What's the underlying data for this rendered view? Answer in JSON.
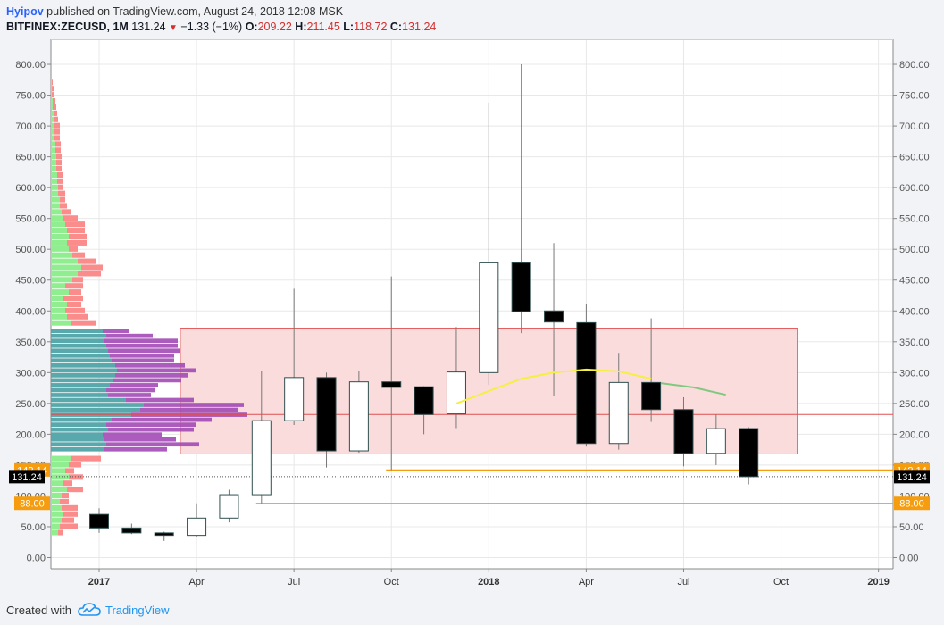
{
  "header": {
    "author": "Hyipov",
    "published_text": "published on TradingView.com, August 24, 2018 12:08 MSK",
    "symbol": "BITFINEX:ZECUSD, 1M",
    "last": "131.24",
    "change": "−1.33 (−1%)",
    "o_label": "O:",
    "o_value": "209.22",
    "h_label": "H:",
    "h_value": "211.45",
    "l_label": "L:",
    "l_value": "118.72",
    "c_label": "C:",
    "c_value": "131.24"
  },
  "footer": {
    "created_with": "Created with",
    "brand": "TradingView"
  },
  "colors": {
    "up_fill": "#ffffff",
    "down_fill": "#000000",
    "candle_stroke": "#2f4f4f",
    "wick": "#777777",
    "zone_fill": "#fbdcdc",
    "zone_stroke": "#e05050",
    "level_line": "#f59d0e",
    "ma_yellow": "#f5ef40",
    "ma_green": "#7fc97f",
    "vp_green": "#90ee90",
    "vp_red": "#fa8c8c",
    "vp_teal": "#4fa3a8",
    "vp_purple": "#a24ab5"
  },
  "chart_data": {
    "type": "candlestick",
    "ylim": [
      -20,
      820
    ],
    "y_ticks": [
      "0.00",
      "50.00",
      "100.00",
      "150.00",
      "200.00",
      "250.00",
      "300.00",
      "350.00",
      "400.00",
      "450.00",
      "500.00",
      "550.00",
      "600.00",
      "650.00",
      "700.00",
      "750.00",
      "800.00"
    ],
    "x_tick_labels": [
      {
        "label": "2017",
        "bold": true,
        "month": 0
      },
      {
        "label": "Apr",
        "bold": false,
        "month": 3
      },
      {
        "label": "Jul",
        "bold": false,
        "month": 6
      },
      {
        "label": "Oct",
        "bold": false,
        "month": 9
      },
      {
        "label": "2018",
        "bold": true,
        "month": 12
      },
      {
        "label": "Apr",
        "bold": false,
        "month": 15
      },
      {
        "label": "Jul",
        "bold": false,
        "month": 18
      },
      {
        "label": "Oct",
        "bold": false,
        "month": 21
      },
      {
        "label": "2019",
        "bold": true,
        "month": 24
      }
    ],
    "candles": [
      {
        "month": 0,
        "o": 70,
        "h": 80,
        "l": 40,
        "c": 48
      },
      {
        "month": 1,
        "o": 48,
        "h": 55,
        "l": 38,
        "c": 40
      },
      {
        "month": 2,
        "o": 40,
        "h": 42,
        "l": 27,
        "c": 36
      },
      {
        "month": 3,
        "o": 36,
        "h": 88,
        "l": 33,
        "c": 64
      },
      {
        "month": 4,
        "o": 64,
        "h": 110,
        "l": 57,
        "c": 102
      },
      {
        "month": 5,
        "o": 102,
        "h": 303,
        "l": 88,
        "c": 222
      },
      {
        "month": 6,
        "o": 222,
        "h": 436,
        "l": 215,
        "c": 292
      },
      {
        "month": 7,
        "o": 292,
        "h": 300,
        "l": 146,
        "c": 173
      },
      {
        "month": 8,
        "o": 173,
        "h": 303,
        "l": 170,
        "c": 285
      },
      {
        "month": 9,
        "o": 285,
        "h": 456,
        "l": 142,
        "c": 276
      },
      {
        "month": 10,
        "o": 277,
        "h": 278,
        "l": 200,
        "c": 232
      },
      {
        "month": 11,
        "o": 233,
        "h": 374,
        "l": 210,
        "c": 301
      },
      {
        "month": 12,
        "o": 300,
        "h": 738,
        "l": 280,
        "c": 478
      },
      {
        "month": 13,
        "o": 478,
        "h": 800,
        "l": 364,
        "c": 399
      },
      {
        "month": 14,
        "o": 400,
        "h": 510,
        "l": 262,
        "c": 382
      },
      {
        "month": 15,
        "o": 381,
        "h": 412,
        "l": 180,
        "c": 185
      },
      {
        "month": 16,
        "o": 185,
        "h": 332,
        "l": 175,
        "c": 284
      },
      {
        "month": 17,
        "o": 284,
        "h": 388,
        "l": 220,
        "c": 240
      },
      {
        "month": 18,
        "o": 240,
        "h": 260,
        "l": 148,
        "c": 169
      },
      {
        "month": 19,
        "o": 169,
        "h": 232,
        "l": 150,
        "c": 209
      },
      {
        "month": 20,
        "o": 209.22,
        "h": 211.45,
        "l": 118.72,
        "c": 131.24
      }
    ],
    "zone": {
      "from_month": 2.5,
      "to_month": 21.5,
      "top": 372,
      "bottom": 168,
      "mid_line": 232
    },
    "levels": [
      {
        "value": 142.14,
        "label": "142.14",
        "from_month": 9
      },
      {
        "value": 88.0,
        "label": "88.00",
        "from_month": 5
      }
    ],
    "last_price": {
      "value": 131.24,
      "label": "131.24"
    },
    "ma_yellow": [
      {
        "month": 11,
        "y": 250
      },
      {
        "month": 12,
        "y": 270
      },
      {
        "month": 13,
        "y": 290
      },
      {
        "month": 14,
        "y": 300
      },
      {
        "month": 15,
        "y": 305
      },
      {
        "month": 16,
        "y": 302
      },
      {
        "month": 17,
        "y": 290
      }
    ],
    "ma_green": [
      {
        "month": 17.3,
        "y": 283
      },
      {
        "month": 18.3,
        "y": 276
      },
      {
        "month": 19.3,
        "y": 264
      }
    ],
    "vp_left": [
      {
        "p": 40,
        "g": 8,
        "r": 6
      },
      {
        "p": 50,
        "g": 10,
        "r": 20
      },
      {
        "p": 60,
        "g": 12,
        "r": 14
      },
      {
        "p": 70,
        "g": 14,
        "r": 16
      },
      {
        "p": 80,
        "g": 12,
        "r": 18
      },
      {
        "p": 90,
        "g": 10,
        "r": 10
      },
      {
        "p": 100,
        "g": 12,
        "r": 8
      },
      {
        "p": 110,
        "g": 18,
        "r": 18
      },
      {
        "p": 120,
        "g": 14,
        "r": 10
      },
      {
        "p": 130,
        "g": 20,
        "r": 16
      },
      {
        "p": 140,
        "g": 16,
        "r": 10
      },
      {
        "p": 150,
        "g": 20,
        "r": 14
      },
      {
        "p": 160,
        "g": 22,
        "r": 34
      },
      {
        "p": 380,
        "g": 22,
        "r": 28
      },
      {
        "p": 390,
        "g": 18,
        "r": 24
      },
      {
        "p": 400,
        "g": 16,
        "r": 22
      },
      {
        "p": 410,
        "g": 18,
        "r": 16
      },
      {
        "p": 420,
        "g": 14,
        "r": 22
      },
      {
        "p": 430,
        "g": 20,
        "r": 14
      },
      {
        "p": 440,
        "g": 16,
        "r": 20
      },
      {
        "p": 450,
        "g": 24,
        "r": 12
      },
      {
        "p": 460,
        "g": 30,
        "r": 26
      },
      {
        "p": 470,
        "g": 34,
        "r": 24
      },
      {
        "p": 480,
        "g": 30,
        "r": 20
      },
      {
        "p": 490,
        "g": 24,
        "r": 14
      },
      {
        "p": 500,
        "g": 20,
        "r": 10
      },
      {
        "p": 510,
        "g": 18,
        "r": 22
      },
      {
        "p": 520,
        "g": 20,
        "r": 20
      },
      {
        "p": 530,
        "g": 18,
        "r": 20
      },
      {
        "p": 540,
        "g": 16,
        "r": 22
      },
      {
        "p": 550,
        "g": 14,
        "r": 16
      },
      {
        "p": 560,
        "g": 12,
        "r": 10
      },
      {
        "p": 570,
        "g": 10,
        "r": 8
      },
      {
        "p": 580,
        "g": 10,
        "r": 6
      },
      {
        "p": 590,
        "g": 8,
        "r": 8
      },
      {
        "p": 600,
        "g": 8,
        "r": 6
      },
      {
        "p": 610,
        "g": 7,
        "r": 6
      },
      {
        "p": 620,
        "g": 7,
        "r": 6
      },
      {
        "p": 630,
        "g": 6,
        "r": 6
      },
      {
        "p": 640,
        "g": 6,
        "r": 6
      },
      {
        "p": 650,
        "g": 6,
        "r": 6
      },
      {
        "p": 660,
        "g": 5,
        "r": 6
      },
      {
        "p": 670,
        "g": 5,
        "r": 6
      },
      {
        "p": 680,
        "g": 4,
        "r": 6
      },
      {
        "p": 690,
        "g": 4,
        "r": 6
      },
      {
        "p": 700,
        "g": 4,
        "r": 6
      },
      {
        "p": 710,
        "g": 3,
        "r": 5
      },
      {
        "p": 720,
        "g": 3,
        "r": 4
      },
      {
        "p": 730,
        "g": 2,
        "r": 4
      },
      {
        "p": 740,
        "g": 2,
        "r": 3
      },
      {
        "p": 750,
        "g": 1,
        "r": 3
      },
      {
        "p": 760,
        "g": 1,
        "r": 2
      },
      {
        "p": 770,
        "g": 1,
        "r": 1
      }
    ],
    "vp_zone": [
      {
        "p": 175,
        "t": 60,
        "u": 70
      },
      {
        "p": 183,
        "t": 62,
        "u": 104
      },
      {
        "p": 191,
        "t": 60,
        "u": 80
      },
      {
        "p": 199,
        "t": 58,
        "u": 66
      },
      {
        "p": 207,
        "t": 64,
        "u": 96
      },
      {
        "p": 215,
        "t": 62,
        "u": 100
      },
      {
        "p": 223,
        "t": 68,
        "u": 112
      },
      {
        "p": 231,
        "t": 90,
        "u": 130
      },
      {
        "p": 239,
        "t": 100,
        "u": 110
      },
      {
        "p": 247,
        "t": 104,
        "u": 112
      },
      {
        "p": 255,
        "t": 84,
        "u": 76
      },
      {
        "p": 263,
        "t": 64,
        "u": 48
      },
      {
        "p": 271,
        "t": 62,
        "u": 54
      },
      {
        "p": 279,
        "t": 66,
        "u": 54
      },
      {
        "p": 287,
        "t": 70,
        "u": 76
      },
      {
        "p": 295,
        "t": 72,
        "u": 82
      },
      {
        "p": 303,
        "t": 74,
        "u": 88
      },
      {
        "p": 311,
        "t": 72,
        "u": 78
      },
      {
        "p": 319,
        "t": 68,
        "u": 70
      },
      {
        "p": 327,
        "t": 66,
        "u": 72
      },
      {
        "p": 335,
        "t": 64,
        "u": 80
      },
      {
        "p": 343,
        "t": 62,
        "u": 80
      },
      {
        "p": 351,
        "t": 60,
        "u": 82
      },
      {
        "p": 359,
        "t": 62,
        "u": 52
      },
      {
        "p": 367,
        "t": 58,
        "u": 30
      }
    ]
  }
}
